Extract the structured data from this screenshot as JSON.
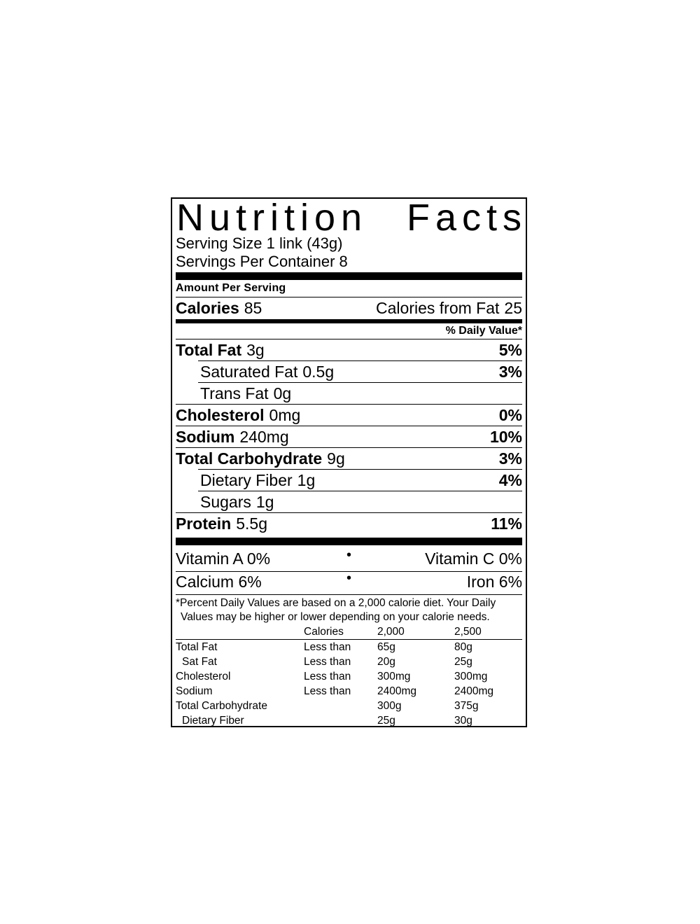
{
  "label": {
    "title_word_1": "Nutrition",
    "title_word_2": "Facts",
    "serving_size": "Serving Size 1 link (43g)",
    "servings_per_container": "Servings Per Container 8",
    "amount_per_serving": "Amount Per Serving",
    "calories_label": "Calories",
    "calories_value": "85",
    "calories_from_fat_label": "Calories from Fat",
    "calories_from_fat_value": "25",
    "daily_value_header": "% Daily Value*",
    "bullet": "•",
    "nutrients": [
      {
        "name": "Total Fat",
        "amount": "3g",
        "dv": "5%"
      },
      {
        "name": "Saturated Fat",
        "amount": "0.5g",
        "dv": "3%"
      },
      {
        "name": "Trans Fat",
        "amount": "0g",
        "dv": ""
      },
      {
        "name": "Cholesterol",
        "amount": "0mg",
        "dv": "0%"
      },
      {
        "name": "Sodium",
        "amount": "240mg",
        "dv": "10%"
      },
      {
        "name": "Total Carbohydrate",
        "amount": "9g",
        "dv": "3%"
      },
      {
        "name": "Dietary Fiber",
        "amount": "1g",
        "dv": "4%"
      },
      {
        "name": "Sugars",
        "amount": "1g",
        "dv": ""
      },
      {
        "name": "Protein",
        "amount": "5.5g",
        "dv": "11%"
      }
    ],
    "micronutrients": [
      {
        "left": "Vitamin A 0%",
        "right": "Vitamin C 0%"
      },
      {
        "left": "Calcium 6%",
        "right": "Iron 6%"
      }
    ],
    "footnote_line_1": "*Percent Daily Values are based on a 2,000 calorie diet. Your Daily",
    "footnote_line_2": "Values may be higher or lower depending on your calorie needs.",
    "dv_table": {
      "header": [
        "Calories",
        "2,000",
        "2,500"
      ],
      "rows": [
        {
          "name": "Total Fat",
          "condition": "Less than",
          "value_2000": "65g",
          "value_2500": "80g"
        },
        {
          "name": "Sat Fat",
          "condition": "Less than",
          "value_2000": "20g",
          "value_2500": "25g"
        },
        {
          "name": "Cholesterol",
          "condition": "Less than",
          "value_2000": "300mg",
          "value_2500": "300mg"
        },
        {
          "name": "Sodium",
          "condition": "Less than",
          "value_2000": "2400mg",
          "value_2500": "2400mg"
        },
        {
          "name": "Total Carbohydrate",
          "condition": "",
          "value_2000": "300g",
          "value_2500": "375g"
        },
        {
          "name": "Dietary Fiber",
          "condition": "",
          "value_2000": "25g",
          "value_2500": "30g"
        }
      ]
    }
  }
}
